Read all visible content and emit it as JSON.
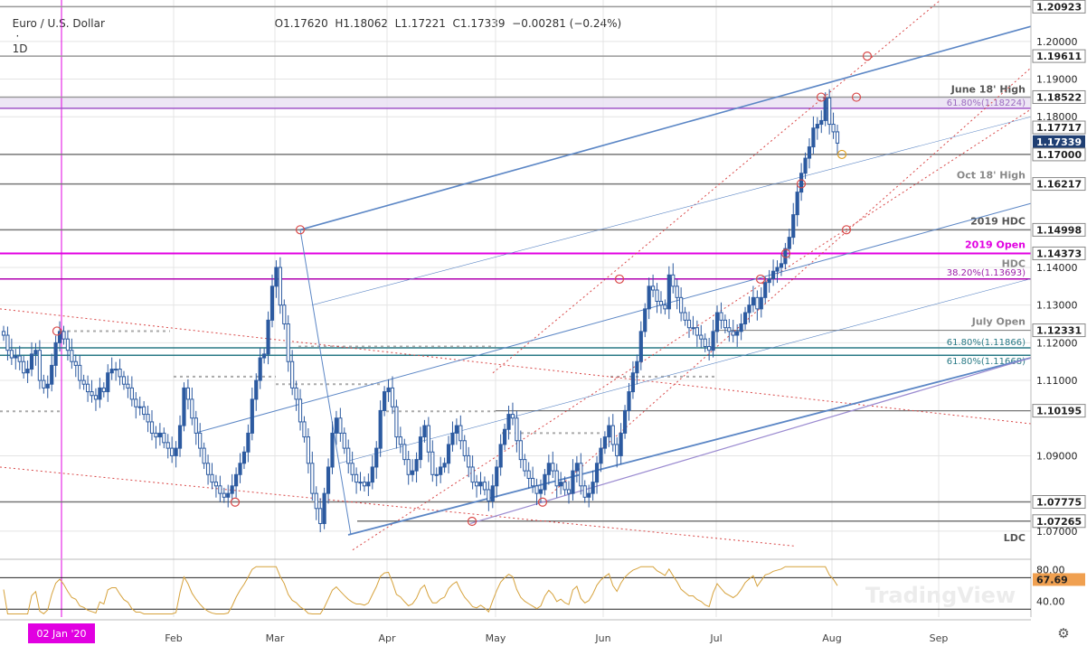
{
  "header": {
    "symbol": "Euro / U.S. Dollar",
    "interval": "1D",
    "ohlc": "O1.17620  H1.18062  L1.17221  C1.17339  −0.00281 (−0.24%)"
  },
  "colors": {
    "up": "#2c5aa0",
    "down": "#2c5aa0",
    "pitchfork": "#5b86c5",
    "red_dotted": "#d94848",
    "magenta": "#e100e1",
    "rsi": "#d6a23c",
    "grid": "#e4e4e4"
  },
  "chart_data": [
    {
      "type": "candlestick",
      "title": "Euro / U.S. Dollar 1D",
      "xlabel": "",
      "ylabel": "",
      "x_ticks": [
        "02 Jan '20",
        "Feb",
        "Mar",
        "Apr",
        "May",
        "Jun",
        "Jul",
        "Aug",
        "Sep"
      ],
      "y_ticks": [
        "1.20923",
        "1.20000",
        "1.19611",
        "1.19000",
        "1.18522",
        "1.18000",
        "1.17717",
        "1.17339",
        "1.17000",
        "1.16217",
        "1.14998",
        "1.14373",
        "1.14000",
        "1.13000",
        "1.12331",
        "1.12000",
        "1.11000",
        "1.10195",
        "1.09000",
        "1.07775",
        "1.07265",
        "1.07000"
      ],
      "ylim": [
        1.063,
        1.211
      ],
      "last_price": 1.17339,
      "levels": [
        {
          "value": 1.20923,
          "label": ""
        },
        {
          "value": 1.19611,
          "label": ""
        },
        {
          "value": 1.18522,
          "label": "June 18' High"
        },
        {
          "value": 1.18224,
          "label": "61.80%(1.18224)"
        },
        {
          "value": 1.17,
          "label": ""
        },
        {
          "value": 1.16217,
          "label": "Oct 18' High"
        },
        {
          "value": 1.14998,
          "label": "2019 HDC"
        },
        {
          "value": 1.14373,
          "label": "2019 Open"
        },
        {
          "value": 1.14373,
          "label": "HDC"
        },
        {
          "value": 1.13693,
          "label": "38.20%(1.13693)"
        },
        {
          "value": 1.12331,
          "label": "July Open"
        },
        {
          "value": 1.11866,
          "label": "61.80%(1.11866)"
        },
        {
          "value": 1.11668,
          "label": "61.80%(1.11668)"
        },
        {
          "value": 1.10195,
          "label": ""
        },
        {
          "value": 1.07775,
          "label": ""
        },
        {
          "value": 1.07265,
          "label": ""
        },
        {
          "value": 1.069,
          "label": "LDC"
        }
      ],
      "series_closes": [
        1.122,
        1.118,
        1.116,
        1.1165,
        1.115,
        1.112,
        1.113,
        1.117,
        1.118,
        1.11,
        1.108,
        1.109,
        1.114,
        1.12,
        1.123,
        1.121,
        1.118,
        1.115,
        1.114,
        1.11,
        1.109,
        1.107,
        1.106,
        1.105,
        1.108,
        1.107,
        1.112,
        1.113,
        1.113,
        1.111,
        1.109,
        1.108,
        1.105,
        1.103,
        1.103,
        1.101,
        1.099,
        1.096,
        1.095,
        1.096,
        1.0935,
        1.092,
        1.09,
        1.092,
        1.098,
        1.108,
        1.105,
        1.1,
        1.096,
        1.092,
        1.088,
        1.085,
        1.083,
        1.082,
        1.08,
        1.079,
        1.08,
        1.082,
        1.085,
        1.088,
        1.091,
        1.096,
        1.105,
        1.11,
        1.116,
        1.117,
        1.126,
        1.135,
        1.14,
        1.13,
        1.125,
        1.115,
        1.108,
        1.105,
        1.099,
        1.095,
        1.088,
        1.08,
        1.076,
        1.072,
        1.08,
        1.087,
        1.096,
        1.1,
        1.096,
        1.092,
        1.088,
        1.085,
        1.083,
        1.083,
        1.082,
        1.083,
        1.087,
        1.092,
        1.102,
        1.107,
        1.108,
        1.103,
        1.095,
        1.093,
        1.089,
        1.085,
        1.086,
        1.089,
        1.095,
        1.098,
        1.091,
        1.085,
        1.085,
        1.087,
        1.088,
        1.093,
        1.096,
        1.098,
        1.094,
        1.09,
        1.087,
        1.083,
        1.082,
        1.083,
        1.081,
        1.078,
        1.082,
        1.087,
        1.093,
        1.097,
        1.101,
        1.1,
        1.094,
        1.089,
        1.086,
        1.084,
        1.082,
        1.08,
        1.081,
        1.085,
        1.088,
        1.086,
        1.082,
        1.083,
        1.081,
        1.08,
        1.086,
        1.088,
        1.082,
        1.079,
        1.08,
        1.083,
        1.088,
        1.092,
        1.095,
        1.098,
        1.093,
        1.09,
        1.096,
        1.102,
        1.107,
        1.112,
        1.115,
        1.123,
        1.129,
        1.135,
        1.134,
        1.131,
        1.13,
        1.129,
        1.138,
        1.135,
        1.132,
        1.128,
        1.126,
        1.124,
        1.124,
        1.122,
        1.121,
        1.119,
        1.118,
        1.123,
        1.128,
        1.126,
        1.124,
        1.123,
        1.122,
        1.123,
        1.125,
        1.128,
        1.13,
        1.132,
        1.129,
        1.132,
        1.136,
        1.137,
        1.139,
        1.14,
        1.141,
        1.145,
        1.148,
        1.154,
        1.16,
        1.165,
        1.169,
        1.172,
        1.177,
        1.178,
        1.179,
        1.185,
        1.178,
        1.176,
        1.173
      ],
      "rsi": {
        "ylim": [
          20,
          90
        ],
        "ticks": [
          "80.00",
          "40.00"
        ],
        "last_value": "67.69",
        "levels": [
          70,
          30
        ]
      }
    }
  ],
  "watermark": "TradingView"
}
